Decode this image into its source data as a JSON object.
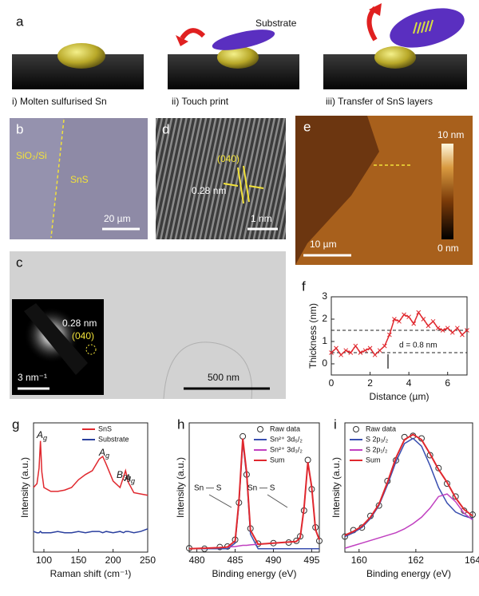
{
  "figure": {
    "a": {
      "label": "a",
      "substrate": "Substrate",
      "captions": [
        "i) Molten sulfurised Sn",
        "ii) Touch print",
        "iii) Transfer of SnS layers"
      ]
    },
    "b": {
      "label": "b",
      "region_left": "SiO₂/Si",
      "region_right": "SnS",
      "scale": "20 µm"
    },
    "c": {
      "label": "c",
      "scale": "500 nm",
      "inset_scale": "3 nm⁻¹",
      "inset_spacing": "0.28 nm",
      "inset_plane": "(040)"
    },
    "d": {
      "label": "d",
      "plane": "(040)",
      "spacing": "0.28 nm",
      "scale": "1 nm"
    },
    "e": {
      "label": "e",
      "scale": "10 µm",
      "colorbar_max": "10 nm",
      "colorbar_min": "0 nm"
    }
  },
  "chart_data": [
    {
      "type": "line",
      "label": "f",
      "xlabel": "Distance (µm)",
      "ylabel": "Thickness (nm)",
      "x": [
        0,
        0.25,
        0.5,
        0.75,
        1,
        1.25,
        1.5,
        1.75,
        2,
        2.25,
        2.5,
        2.75,
        3,
        3.25,
        3.5,
        3.75,
        4,
        4.25,
        4.5,
        4.75,
        5,
        5.25,
        5.5,
        5.75,
        6,
        6.25,
        6.5,
        6.75,
        7
      ],
      "series": [
        {
          "color": "#e0282e",
          "marker": "cross",
          "values": [
            0.5,
            0.7,
            0.4,
            0.6,
            0.5,
            0.8,
            0.5,
            0.6,
            0.7,
            0.4,
            0.6,
            0.8,
            1.3,
            2.0,
            1.9,
            2.2,
            2.1,
            1.8,
            2.3,
            2.0,
            1.7,
            1.9,
            1.6,
            1.5,
            1.6,
            1.4,
            1.6,
            1.3,
            1.5
          ]
        }
      ],
      "hlines": [
        0.5,
        1.5
      ],
      "annotations": [
        "d = 0.8 nm"
      ],
      "xlim": [
        0,
        7
      ],
      "xticks": [
        0,
        2,
        4,
        6
      ],
      "ylim": [
        -0.5,
        3
      ],
      "yticks": [
        0,
        1,
        2,
        3
      ]
    },
    {
      "type": "line",
      "label": "g",
      "xlabel": "Raman shift (cm⁻¹)",
      "ylabel": "Intensity (a.u.)",
      "x": [
        85,
        90,
        93,
        95,
        97,
        100,
        110,
        120,
        130,
        140,
        150,
        160,
        170,
        180,
        185,
        190,
        200,
        210,
        215,
        218,
        222,
        230,
        240,
        250
      ],
      "series": [
        {
          "name": "SnS",
          "color": "#e0282e",
          "values": [
            5.0,
            5.3,
            6.5,
            8.6,
            6.2,
            5.0,
            4.7,
            4.7,
            4.8,
            5.0,
            5.6,
            6.0,
            6.3,
            7.2,
            7.4,
            6.8,
            5.5,
            5.0,
            5.8,
            6.3,
            5.4,
            4.6,
            4.5,
            4.4
          ]
        },
        {
          "name": "Substrate",
          "color": "#2a3f9e",
          "values": [
            1.6,
            1.5,
            1.5,
            1.6,
            1.5,
            1.5,
            1.5,
            1.6,
            1.5,
            1.5,
            1.6,
            1.5,
            1.6,
            1.6,
            1.5,
            1.6,
            1.5,
            1.6,
            1.5,
            1.6,
            1.6,
            1.5,
            1.6,
            1.8
          ]
        }
      ],
      "annotations": [
        {
          "text": "A",
          "sub": "g"
        },
        {
          "text": "B",
          "sub": "3g"
        },
        {
          "text": "A",
          "sub": "g"
        },
        {
          "text": "A",
          "sub": "g"
        }
      ],
      "legend": "upper right",
      "xlim": [
        85,
        250
      ],
      "xticks": [
        100,
        150,
        200,
        250
      ],
      "ylim": [
        0,
        10
      ]
    },
    {
      "type": "line",
      "label": "h",
      "xlabel": "Binding energy (eV)",
      "ylabel": "Intensity (a.u.)",
      "x": [
        479,
        481,
        483,
        484,
        485,
        485.5,
        486,
        486.5,
        487,
        488,
        490,
        492,
        493,
        493.5,
        494,
        494.5,
        495,
        495.5,
        496
      ],
      "series": [
        {
          "name": "Raw data",
          "color": "#333333",
          "marker": "open-circle",
          "values": [
            0.35,
            0.3,
            0.45,
            0.5,
            1.1,
            4.4,
            10.3,
            6.9,
            2.1,
            0.75,
            0.8,
            0.85,
            1.0,
            1.4,
            3.7,
            8.2,
            5.6,
            2.2,
            1.0
          ]
        },
        {
          "name": "Sn²⁺ 3d₅/₂",
          "color": "#3a4fb0",
          "values": [
            0.3,
            0.3,
            0.3,
            0.3,
            0.8,
            4.3,
            9.8,
            6.8,
            1.6,
            0.3,
            0.3,
            0.3,
            0.3,
            0.3,
            0.3,
            0.3,
            0.3,
            0.3,
            0.3
          ]
        },
        {
          "name": "Sn²⁺ 3d₃/₂",
          "color": "#c040c0",
          "values": [
            0.3,
            0.35,
            0.4,
            0.45,
            0.5,
            0.55,
            0.6,
            0.6,
            0.65,
            0.7,
            0.8,
            0.9,
            0.95,
            1.3,
            3.9,
            8.0,
            5.8,
            2.0,
            1.1
          ]
        },
        {
          "name": "Sum",
          "color": "#e0282e",
          "values": [
            0.3,
            0.35,
            0.4,
            0.45,
            1.0,
            4.55,
            10.1,
            7.1,
            1.95,
            0.7,
            0.8,
            0.9,
            0.95,
            1.3,
            3.9,
            8.0,
            5.8,
            2.0,
            1.1
          ]
        }
      ],
      "annotations": [
        "Sn — S",
        "Sn — S"
      ],
      "legend": "upper right",
      "xlim": [
        479,
        496
      ],
      "xticks": [
        480,
        485,
        490,
        495
      ],
      "ylim": [
        0,
        11.5
      ]
    },
    {
      "type": "line",
      "label": "i",
      "xlabel": "Binding energy (eV)",
      "ylabel": "Intensity (a.u.)",
      "x": [
        159.5,
        159.8,
        160.1,
        160.4,
        160.7,
        161.0,
        161.3,
        161.6,
        161.9,
        162.2,
        162.5,
        162.8,
        163.1,
        163.4,
        163.7,
        164.0
      ],
      "series": [
        {
          "name": "Raw data",
          "color": "#333333",
          "marker": "open-circle",
          "values": [
            1.2,
            1.7,
            1.9,
            2.8,
            3.6,
            5.5,
            7.1,
            8.9,
            9.0,
            8.8,
            7.5,
            6.5,
            5.3,
            4.3,
            3.2,
            2.9
          ]
        },
        {
          "name": "S 2p₃/₂",
          "color": "#3a4fb0",
          "values": [
            1.2,
            1.5,
            1.9,
            2.6,
            3.6,
            5.2,
            7.0,
            8.4,
            8.8,
            8.2,
            6.7,
            5.0,
            3.8,
            3.1,
            2.8,
            2.6
          ]
        },
        {
          "name": "S 2p₁/₂",
          "color": "#c040c0",
          "values": [
            0.3,
            0.5,
            0.7,
            0.9,
            1.1,
            1.3,
            1.5,
            1.8,
            2.2,
            2.7,
            3.4,
            4.3,
            4.5,
            3.9,
            3.0,
            2.5
          ]
        },
        {
          "name": "Sum",
          "color": "#e0282e",
          "values": [
            1.3,
            1.6,
            2.0,
            2.7,
            3.7,
            5.4,
            7.3,
            8.7,
            9.1,
            8.7,
            7.6,
            6.4,
            5.4,
            4.2,
            3.3,
            2.8
          ]
        }
      ],
      "legend": "upper left",
      "xlim": [
        159.5,
        164
      ],
      "xticks": [
        160,
        162,
        164
      ],
      "ylim": [
        0,
        10
      ]
    }
  ]
}
